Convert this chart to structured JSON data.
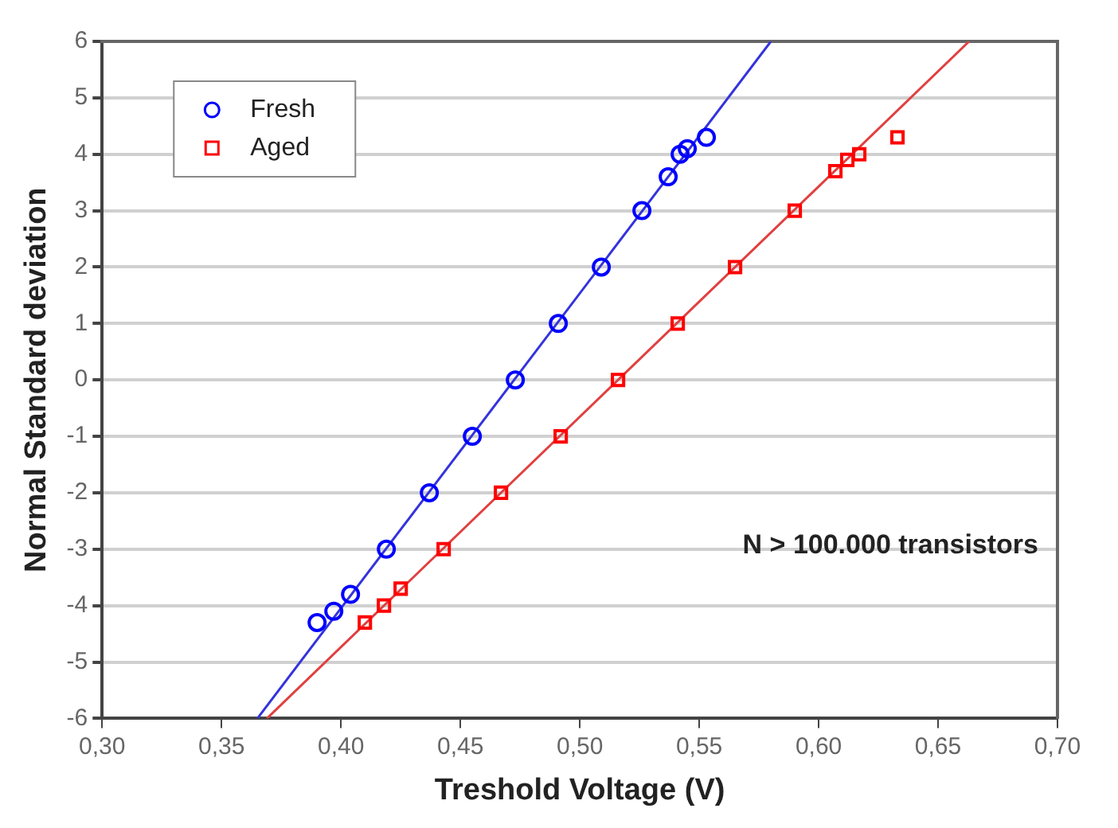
{
  "chart_data": {
    "type": "scatter",
    "xlabel": "Treshold Voltage (V)",
    "ylabel": "Normal Standard deviation",
    "xlim": [
      0.3,
      0.7
    ],
    "xticks": [
      {
        "value": 0.3,
        "label": "0,30"
      },
      {
        "value": 0.35,
        "label": "0,35"
      },
      {
        "value": 0.4,
        "label": "0,40"
      },
      {
        "value": 0.45,
        "label": "0,45"
      },
      {
        "value": 0.5,
        "label": "0,50"
      },
      {
        "value": 0.55,
        "label": "0,55"
      },
      {
        "value": 0.6,
        "label": "0,60"
      },
      {
        "value": 0.65,
        "label": "0,65"
      },
      {
        "value": 0.7,
        "label": "0,70"
      }
    ],
    "ylim": [
      -6,
      6
    ],
    "yticks": [
      -6,
      -5,
      -4,
      -3,
      -2,
      -1,
      0,
      1,
      2,
      3,
      4,
      5,
      6
    ],
    "grid": "y",
    "legend": "top left",
    "annotations": [
      "N > 100.000 transistors"
    ],
    "series": [
      {
        "name": "Fresh",
        "color": "#0000ff",
        "marker": "circle",
        "x": [
          0.39,
          0.397,
          0.404,
          0.419,
          0.437,
          0.455,
          0.473,
          0.491,
          0.509,
          0.526,
          0.537,
          0.542,
          0.545,
          0.553
        ],
        "values": [
          -4.3,
          -4.1,
          -3.8,
          -3,
          -2,
          -1,
          0,
          1,
          2,
          3,
          3.6,
          4.0,
          4.1,
          4.3
        ]
      },
      {
        "name": "Aged",
        "color": "#ff0000",
        "marker": "square",
        "x": [
          0.41,
          0.418,
          0.425,
          0.443,
          0.467,
          0.492,
          0.516,
          0.541,
          0.565,
          0.59,
          0.607,
          0.612,
          0.617,
          0.633
        ],
        "values": [
          -4.3,
          -4.0,
          -3.7,
          -3,
          -2,
          -1,
          0,
          1,
          2,
          3,
          3.7,
          3.9,
          4.0,
          4.3
        ]
      },
      {
        "type": "line",
        "color": "#3333dd",
        "marker": "none",
        "x": [
          0.365,
          0.58
        ],
        "values": [
          -6,
          6
        ]
      },
      {
        "type": "line",
        "color": "#e04040",
        "marker": "none",
        "x": [
          0.369,
          0.663
        ],
        "values": [
          -6,
          6
        ]
      }
    ]
  }
}
